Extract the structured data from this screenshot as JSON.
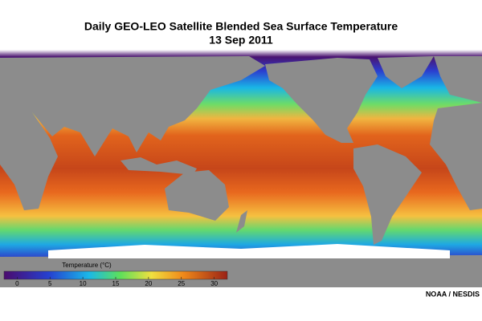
{
  "map": {
    "title": "Daily GEO-LEO Satellite Blended Sea Surface Temperature",
    "date": "13 Sep 2011",
    "colorbar": {
      "label": "Temperature (°C)",
      "range": [
        -2,
        32
      ],
      "ticks": [
        0,
        5,
        10,
        15,
        20,
        25,
        30
      ]
    },
    "credit": "NOAA / NESDIS"
  }
}
